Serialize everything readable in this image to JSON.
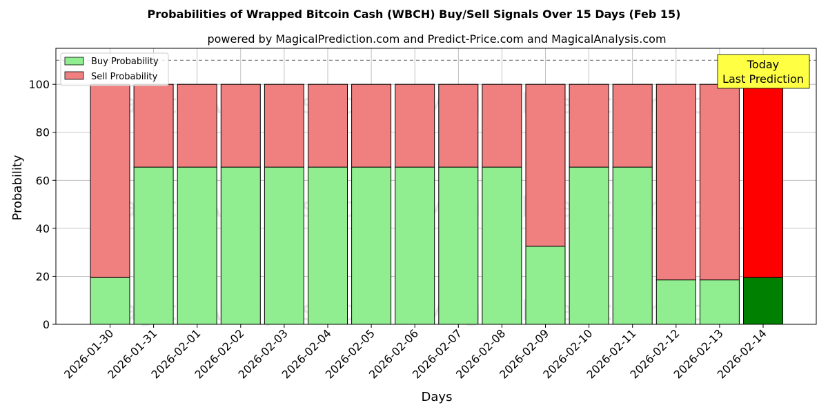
{
  "chart_data": {
    "type": "bar",
    "stacked": true,
    "title": "Probabilities of Wrapped Bitcoin Cash (WBCH) Buy/Sell Signals Over 15 Days (Feb 15)",
    "subtitle": "powered by MagicalPrediction.com and Predict-Price.com and MagicalAnalysis.com",
    "xlabel": "Days",
    "ylabel": "Probability",
    "ylim": [
      0,
      115
    ],
    "yticks": [
      0,
      20,
      40,
      60,
      80,
      100
    ],
    "grid": true,
    "legend_position": "top-left",
    "reference_line": 110,
    "categories": [
      "2026-01-30",
      "2026-01-31",
      "2026-02-01",
      "2026-02-02",
      "2026-02-03",
      "2026-02-04",
      "2026-02-05",
      "2026-02-06",
      "2026-02-07",
      "2026-02-08",
      "2026-02-09",
      "2026-02-10",
      "2026-02-11",
      "2026-02-12",
      "2026-02-13",
      "2026-02-14"
    ],
    "series": [
      {
        "name": "Buy Probability",
        "color": "#90ee90",
        "highlight_color": "#008000",
        "values": [
          19.5,
          65.5,
          65.5,
          65.5,
          65.5,
          65.5,
          65.5,
          65.5,
          65.5,
          65.5,
          32.5,
          65.5,
          65.5,
          18.5,
          18.5,
          19.5
        ]
      },
      {
        "name": "Sell Probability",
        "color": "#f08080",
        "highlight_color": "#ff0000",
        "values": [
          80.5,
          34.5,
          34.5,
          34.5,
          34.5,
          34.5,
          34.5,
          34.5,
          34.5,
          34.5,
          67.5,
          34.5,
          34.5,
          81.5,
          81.5,
          80.5
        ]
      }
    ],
    "highlight_index": 15,
    "annotation": {
      "line1": "Today",
      "line2": "Last Prediction",
      "background": "#ffff44"
    },
    "watermarks": [
      "MagicalAnalysis.com",
      "MagicalPrediction.com"
    ]
  }
}
